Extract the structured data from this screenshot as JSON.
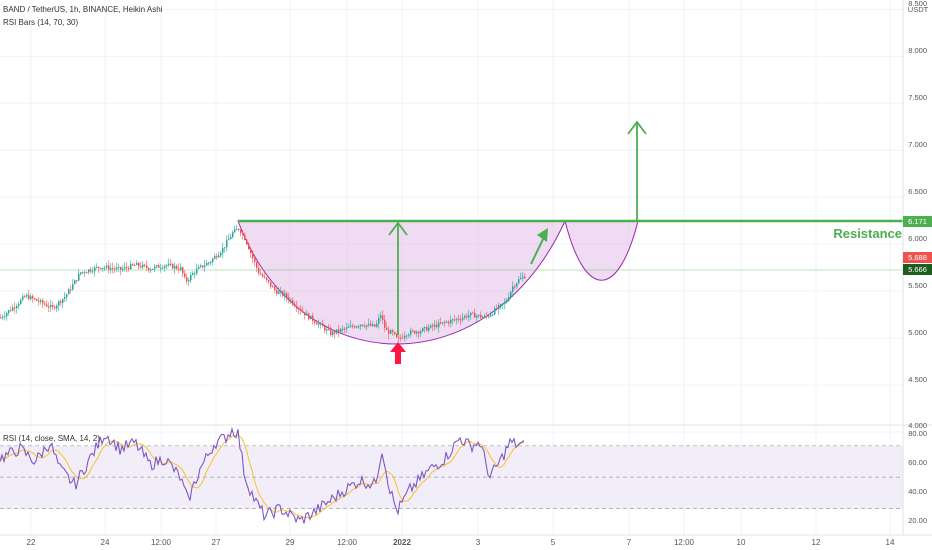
{
  "header": {
    "symbol_line": "BAND / TetherUS, 1h, BINANCE, Heikin Ashi",
    "indicator_line": "RSI Bars (14, 70, 30)"
  },
  "currency": "USDT",
  "y_axis": {
    "labels": [
      "8.500",
      "8.000",
      "7.500",
      "7.000",
      "6.500",
      "6.000",
      "5.500",
      "5.000",
      "4.500",
      "4.000"
    ]
  },
  "price_tags": {
    "resistance": "6.171",
    "high": "5.688",
    "last": "5.666"
  },
  "annotation": {
    "resistance_label": "Resistance"
  },
  "rsi_panel": {
    "label": "RSI (14, close, SMA, 14, 2)",
    "axis_labels": [
      "80.00",
      "60.00",
      "40.00",
      "20.00"
    ]
  },
  "x_axis": {
    "labels": [
      "22",
      "24",
      "12:00",
      "27",
      "29",
      "12:00",
      "2022",
      "3",
      "5",
      "7",
      "12:00",
      "10",
      "12",
      "14"
    ]
  },
  "colors": {
    "up": "#26a69a",
    "down": "#ef5350",
    "pattern_fill": "#e1bee7",
    "pattern_line": "#9c27b0",
    "annotation": "#4caf50",
    "rsi_line": "#7e57c2",
    "rsi_ma": "#fbc02d"
  },
  "chart_data": {
    "type": "candlestick",
    "symbol": "BAND / TetherUS",
    "interval": "1h",
    "exchange": "BINANCE",
    "ylim": [
      4.0,
      8.6
    ],
    "resistance": 6.171,
    "last_price": 5.666,
    "rsi_ylim": [
      15,
      82
    ],
    "rsi_bands": [
      70,
      50,
      30
    ],
    "price_anchors": [
      {
        "t": 0,
        "p": 5.22
      },
      {
        "t": 15,
        "p": 5.35
      },
      {
        "t": 25,
        "p": 5.45
      },
      {
        "t": 40,
        "p": 5.38
      },
      {
        "t": 52,
        "p": 5.32
      },
      {
        "t": 65,
        "p": 5.45
      },
      {
        "t": 80,
        "p": 5.7
      },
      {
        "t": 100,
        "p": 5.76
      },
      {
        "t": 120,
        "p": 5.73
      },
      {
        "t": 135,
        "p": 5.78
      },
      {
        "t": 150,
        "p": 5.74
      },
      {
        "t": 165,
        "p": 5.78
      },
      {
        "t": 180,
        "p": 5.74
      },
      {
        "t": 185,
        "p": 5.6
      },
      {
        "t": 195,
        "p": 5.72
      },
      {
        "t": 210,
        "p": 5.82
      },
      {
        "t": 222,
        "p": 5.95
      },
      {
        "t": 232,
        "p": 6.12
      },
      {
        "t": 238,
        "p": 6.17
      },
      {
        "t": 245,
        "p": 6.05
      },
      {
        "t": 252,
        "p": 5.85
      },
      {
        "t": 258,
        "p": 5.7
      },
      {
        "t": 265,
        "p": 5.62
      },
      {
        "t": 275,
        "p": 5.5
      },
      {
        "t": 285,
        "p": 5.45
      },
      {
        "t": 295,
        "p": 5.35
      },
      {
        "t": 305,
        "p": 5.25
      },
      {
        "t": 318,
        "p": 5.15
      },
      {
        "t": 330,
        "p": 5.05
      },
      {
        "t": 345,
        "p": 5.1
      },
      {
        "t": 360,
        "p": 5.15
      },
      {
        "t": 375,
        "p": 5.12
      },
      {
        "t": 380,
        "p": 5.25
      },
      {
        "t": 385,
        "p": 5.08
      },
      {
        "t": 392,
        "p": 5.05
      },
      {
        "t": 397,
        "p": 4.98
      },
      {
        "t": 405,
        "p": 5.05
      },
      {
        "t": 420,
        "p": 5.08
      },
      {
        "t": 440,
        "p": 5.15
      },
      {
        "t": 455,
        "p": 5.2
      },
      {
        "t": 470,
        "p": 5.25
      },
      {
        "t": 485,
        "p": 5.22
      },
      {
        "t": 495,
        "p": 5.3
      },
      {
        "t": 505,
        "p": 5.38
      },
      {
        "t": 512,
        "p": 5.55
      },
      {
        "t": 518,
        "p": 5.62
      },
      {
        "t": 524,
        "p": 5.66
      }
    ],
    "rsi_anchors": [
      {
        "t": 0,
        "p": 62
      },
      {
        "t": 20,
        "p": 68
      },
      {
        "t": 35,
        "p": 60
      },
      {
        "t": 50,
        "p": 72
      },
      {
        "t": 60,
        "p": 55
      },
      {
        "t": 75,
        "p": 45
      },
      {
        "t": 90,
        "p": 62
      },
      {
        "t": 105,
        "p": 78
      },
      {
        "t": 120,
        "p": 68
      },
      {
        "t": 135,
        "p": 72
      },
      {
        "t": 150,
        "p": 58
      },
      {
        "t": 165,
        "p": 62
      },
      {
        "t": 180,
        "p": 50
      },
      {
        "t": 188,
        "p": 35
      },
      {
        "t": 200,
        "p": 55
      },
      {
        "t": 215,
        "p": 72
      },
      {
        "t": 225,
        "p": 75
      },
      {
        "t": 232,
        "p": 80
      },
      {
        "t": 238,
        "p": 78
      },
      {
        "t": 245,
        "p": 50
      },
      {
        "t": 255,
        "p": 35
      },
      {
        "t": 265,
        "p": 25
      },
      {
        "t": 280,
        "p": 30
      },
      {
        "t": 300,
        "p": 22
      },
      {
        "t": 315,
        "p": 28
      },
      {
        "t": 330,
        "p": 35
      },
      {
        "t": 345,
        "p": 42
      },
      {
        "t": 360,
        "p": 48
      },
      {
        "t": 375,
        "p": 45
      },
      {
        "t": 382,
        "p": 68
      },
      {
        "t": 390,
        "p": 42
      },
      {
        "t": 397,
        "p": 28
      },
      {
        "t": 410,
        "p": 42
      },
      {
        "t": 430,
        "p": 55
      },
      {
        "t": 445,
        "p": 62
      },
      {
        "t": 460,
        "p": 75
      },
      {
        "t": 470,
        "p": 70
      },
      {
        "t": 480,
        "p": 72
      },
      {
        "t": 490,
        "p": 50
      },
      {
        "t": 500,
        "p": 60
      },
      {
        "t": 510,
        "p": 72
      },
      {
        "t": 524,
        "p": 70
      }
    ]
  }
}
